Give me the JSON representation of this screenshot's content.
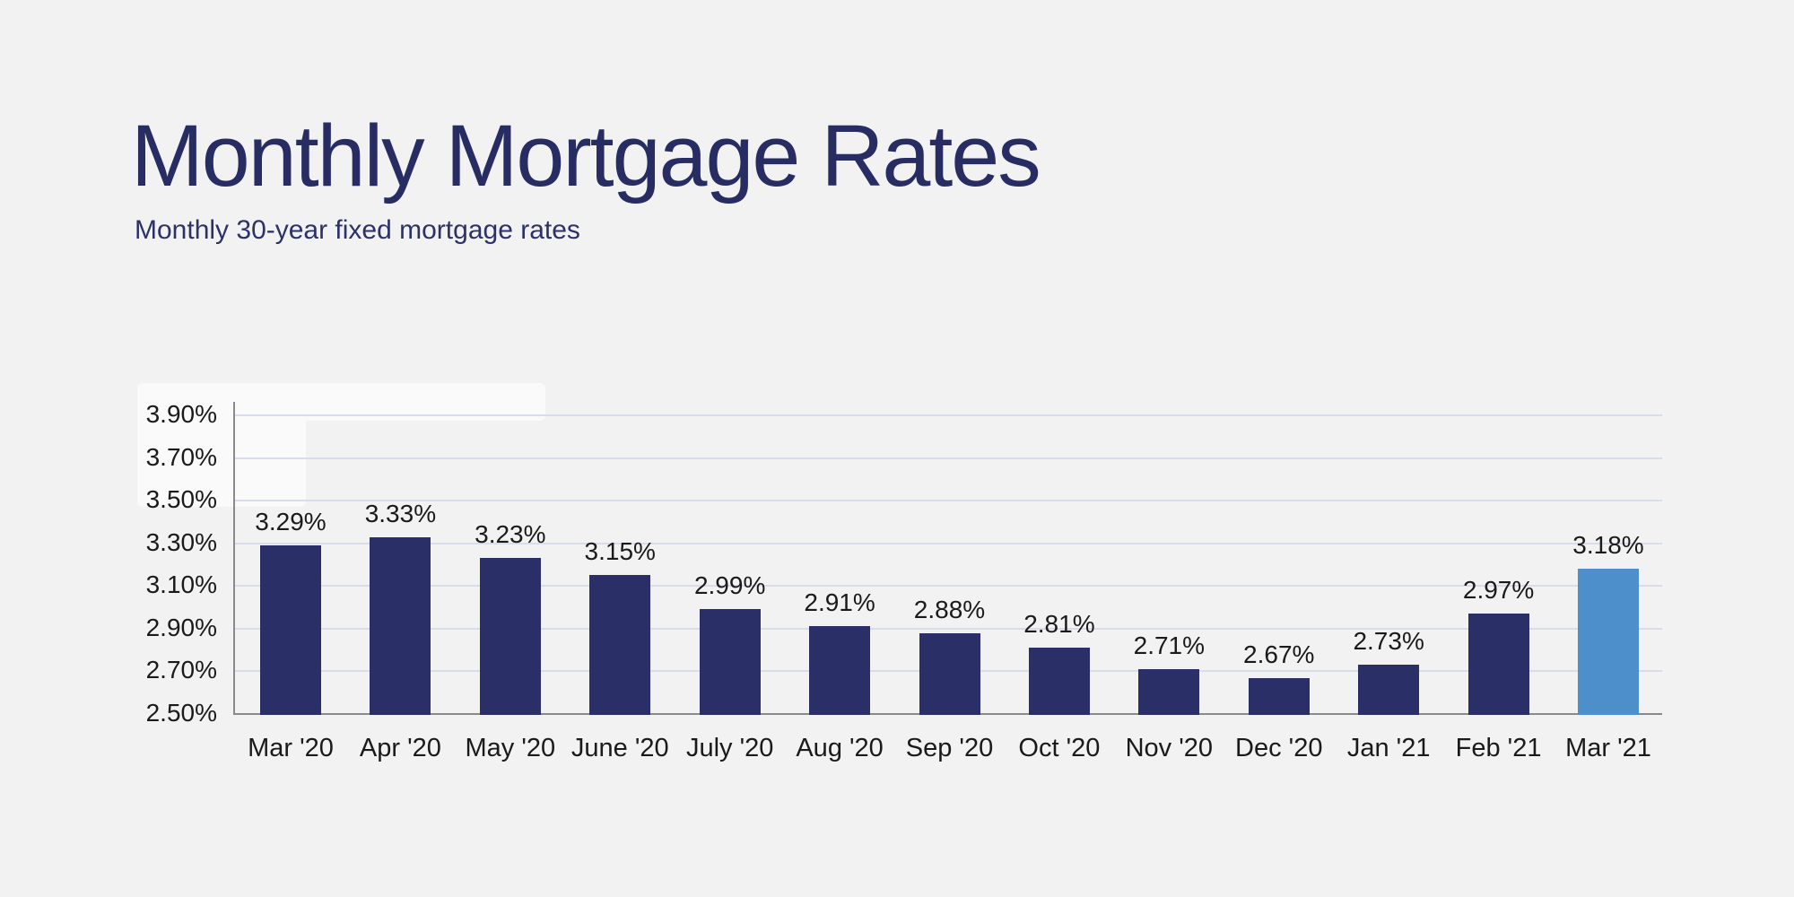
{
  "header": {
    "title": "Monthly Mortgage Rates",
    "subtitle": "Monthly 30-year fixed mortgage rates"
  },
  "colors": {
    "background": "#f2f2f3",
    "title": "#272c63",
    "subtitle": "#2c3168",
    "bar": "#2a2f68",
    "highlight_bar": "#4d8fca",
    "gridline": "#d9ddeb",
    "axis": "#8a8a8a",
    "tick_text": "#1a1a1a"
  },
  "chart_data": {
    "type": "bar",
    "title": "Monthly Mortgage Rates",
    "subtitle": "Monthly 30-year fixed mortgage rates",
    "categories": [
      "Mar '20",
      "Apr '20",
      "May '20",
      "June '20",
      "July '20",
      "Aug '20",
      "Sep '20",
      "Oct '20",
      "Nov '20",
      "Dec '20",
      "Jan '21",
      "Feb '21",
      "Mar '21"
    ],
    "values": [
      3.29,
      3.33,
      3.23,
      3.15,
      2.99,
      2.91,
      2.88,
      2.81,
      2.71,
      2.67,
      2.73,
      2.97,
      3.18
    ],
    "value_labels": [
      "3.29%",
      "3.33%",
      "3.23%",
      "3.15%",
      "2.99%",
      "2.91%",
      "2.88%",
      "2.81%",
      "2.71%",
      "2.67%",
      "2.73%",
      "2.97%",
      "3.18%"
    ],
    "y_ticks": [
      "3.90%",
      "3.70%",
      "3.50%",
      "3.30%",
      "3.10%",
      "2.90%",
      "2.70%",
      "2.50%"
    ],
    "y_tick_values": [
      3.9,
      3.7,
      3.5,
      3.3,
      3.1,
      2.9,
      2.7,
      2.5
    ],
    "ylim": [
      2.5,
      3.9
    ],
    "xlabel": "",
    "ylabel": "",
    "grid": true,
    "legend": "none",
    "highlight_index": 12
  }
}
